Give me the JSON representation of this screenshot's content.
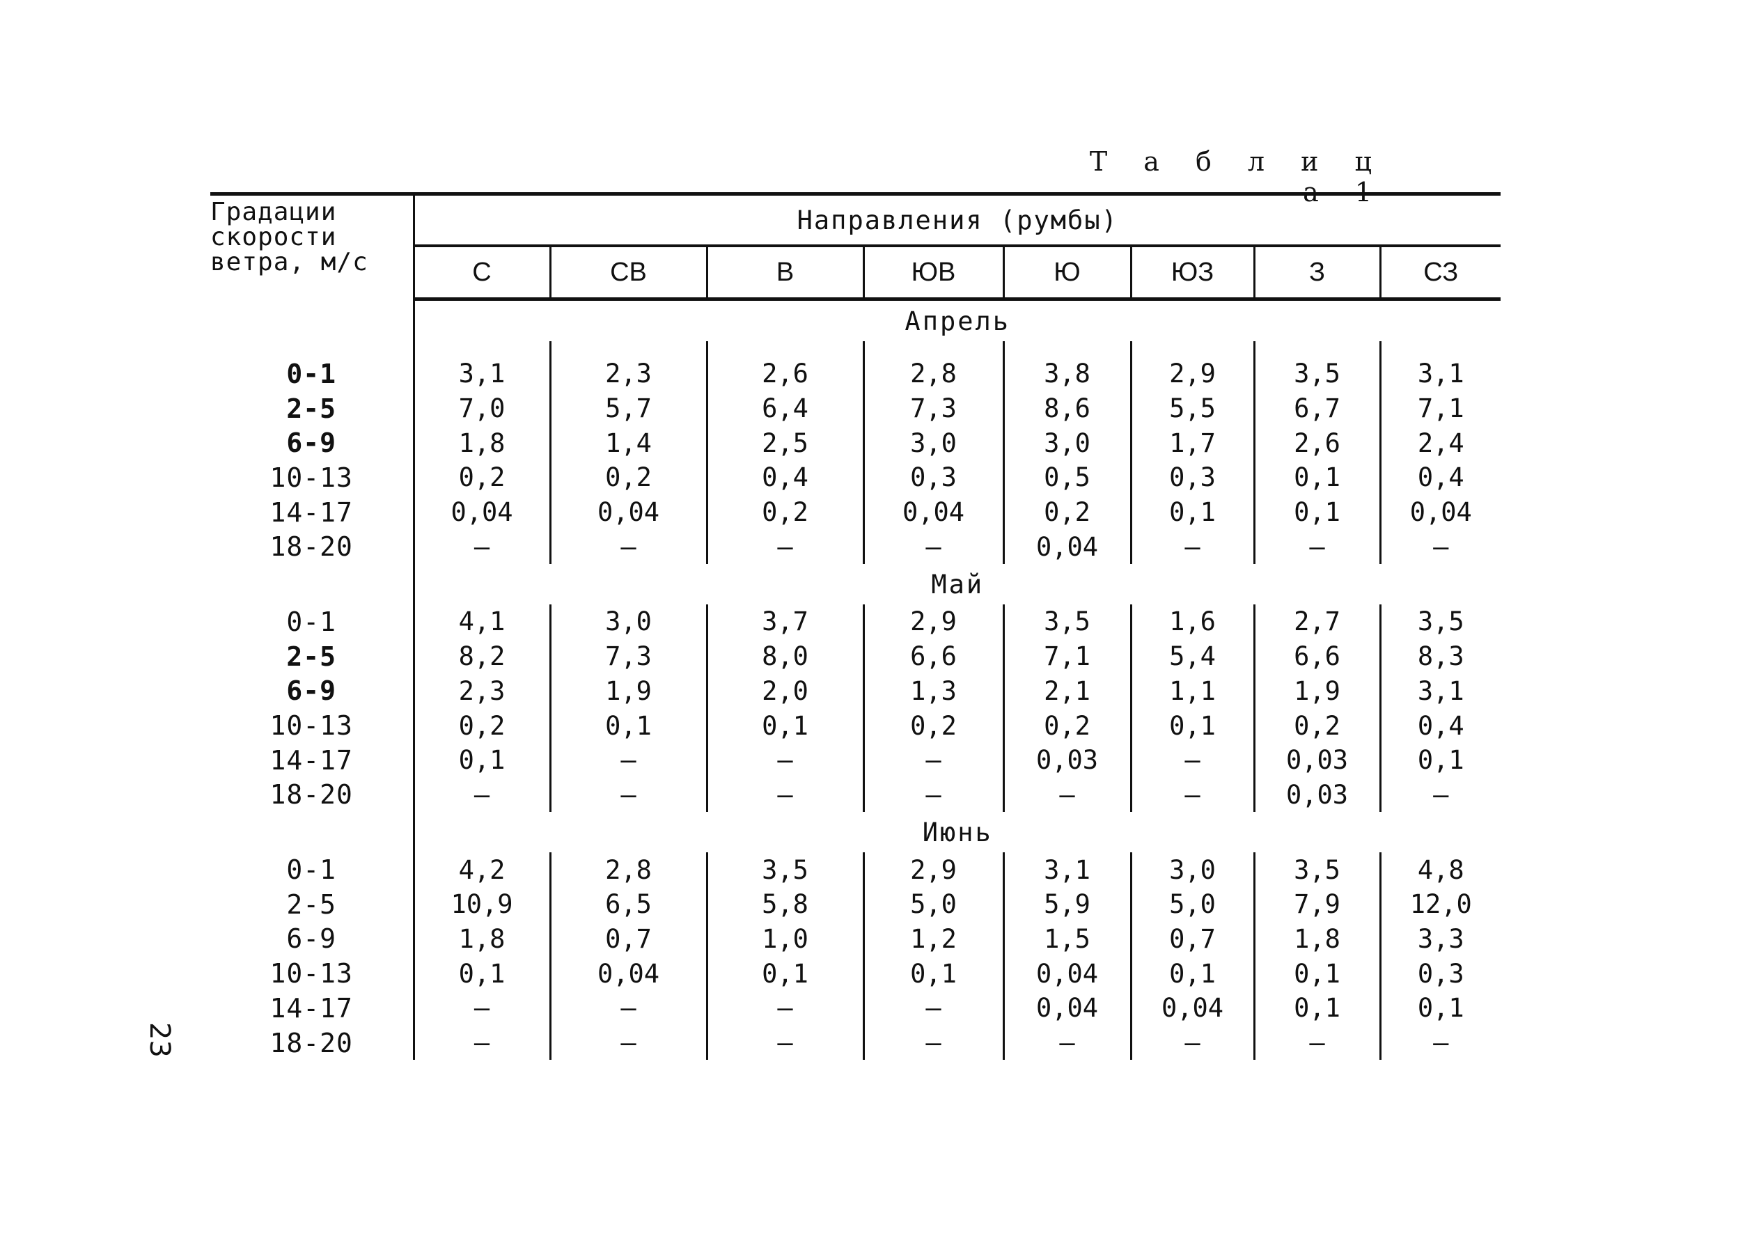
{
  "caption": "Т а б л и ц а 1",
  "page_number": "23",
  "header": {
    "row_label": [
      "Градации",
      "скорости",
      "ветра, м/с"
    ],
    "group_label": "Направления (румбы)",
    "directions": [
      "С",
      "СВ",
      "В",
      "ЮВ",
      "Ю",
      "ЮЗ",
      "З",
      "СЗ"
    ]
  },
  "sections": [
    {
      "month": "Апрель",
      "rows": [
        {
          "g": "0-1",
          "bold": true,
          "v": [
            "3,1",
            "2,3",
            "2,6",
            "2,8",
            "3,8",
            "2,9",
            "3,5",
            "3,1"
          ]
        },
        {
          "g": "2-5",
          "bold": true,
          "v": [
            "7,0",
            "5,7",
            "6,4",
            "7,3",
            "8,6",
            "5,5",
            "6,7",
            "7,1"
          ]
        },
        {
          "g": "6-9",
          "bold": true,
          "v": [
            "1,8",
            "1,4",
            "2,5",
            "3,0",
            "3,0",
            "1,7",
            "2,6",
            "2,4"
          ]
        },
        {
          "g": "10-13",
          "bold": false,
          "v": [
            "0,2",
            "0,2",
            "0,4",
            "0,3",
            "0,5",
            "0,3",
            "0,1",
            "0,4"
          ]
        },
        {
          "g": "14-17",
          "bold": false,
          "v": [
            "0,04",
            "0,04",
            "0,2",
            "0,04",
            "0,2",
            "0,1",
            "0,1",
            "0,04"
          ]
        },
        {
          "g": "18-20",
          "bold": false,
          "v": [
            "–",
            "–",
            "–",
            "–",
            "0,04",
            "–",
            "–",
            "–"
          ]
        }
      ]
    },
    {
      "month": "Май",
      "rows": [
        {
          "g": "0-1",
          "bold": false,
          "v": [
            "4,1",
            "3,0",
            "3,7",
            "2,9",
            "3,5",
            "1,6",
            "2,7",
            "3,5"
          ]
        },
        {
          "g": "2-5",
          "bold": true,
          "v": [
            "8,2",
            "7,3",
            "8,0",
            "6,6",
            "7,1",
            "5,4",
            "6,6",
            "8,3"
          ]
        },
        {
          "g": "6-9",
          "bold": true,
          "v": [
            "2,3",
            "1,9",
            "2,0",
            "1,3",
            "2,1",
            "1,1",
            "1,9",
            "3,1"
          ]
        },
        {
          "g": "10-13",
          "bold": false,
          "v": [
            "0,2",
            "0,1",
            "0,1",
            "0,2",
            "0,2",
            "0,1",
            "0,2",
            "0,4"
          ]
        },
        {
          "g": "14-17",
          "bold": false,
          "v": [
            "0,1",
            "–",
            "–",
            "–",
            "0,03",
            "–",
            "0,03",
            "0,1"
          ]
        },
        {
          "g": "18-20",
          "bold": false,
          "v": [
            "–",
            "–",
            "–",
            "–",
            "–",
            "–",
            "0,03",
            "–"
          ]
        }
      ]
    },
    {
      "month": "Июнь",
      "rows": [
        {
          "g": "0-1",
          "bold": false,
          "v": [
            "4,2",
            "2,8",
            "3,5",
            "2,9",
            "3,1",
            "3,0",
            "3,5",
            "4,8"
          ]
        },
        {
          "g": "2-5",
          "bold": false,
          "v": [
            "10,9",
            "6,5",
            "5,8",
            "5,0",
            "5,9",
            "5,0",
            "7,9",
            "12,0"
          ]
        },
        {
          "g": "6-9",
          "bold": false,
          "v": [
            "1,8",
            "0,7",
            "1,0",
            "1,2",
            "1,5",
            "0,7",
            "1,8",
            "3,3"
          ]
        },
        {
          "g": "10-13",
          "bold": false,
          "v": [
            "0,1",
            "0,04",
            "0,1",
            "0,1",
            "0,04",
            "0,1",
            "0,1",
            "0,3"
          ]
        },
        {
          "g": "14-17",
          "bold": false,
          "v": [
            "–",
            "–",
            "–",
            "–",
            "0,04",
            "0,04",
            "0,1",
            "0,1"
          ]
        },
        {
          "g": "18-20",
          "bold": false,
          "v": [
            "–",
            "–",
            "–",
            "–",
            "–",
            "–",
            "–",
            "–"
          ]
        }
      ]
    }
  ]
}
